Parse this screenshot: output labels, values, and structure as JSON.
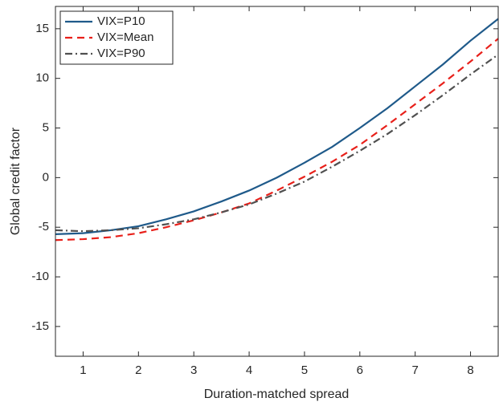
{
  "chart_data": {
    "type": "line",
    "x_label": "Duration-matched spread",
    "y_label": "Global credit factor",
    "x": [
      0.5,
      1,
      1.5,
      2,
      2.5,
      3,
      3.5,
      4,
      4.5,
      5,
      5.5,
      6,
      6.5,
      7,
      7.5,
      8,
      8.5
    ],
    "series": [
      {
        "name": "VIX=P10",
        "color": "#1f5a8a",
        "dash": "solid",
        "values": [
          -5.7,
          -5.6,
          -5.3,
          -4.9,
          -4.2,
          -3.4,
          -2.4,
          -1.3,
          0.0,
          1.5,
          3.1,
          5.0,
          7.0,
          9.2,
          11.4,
          13.8,
          16.0
        ]
      },
      {
        "name": "VIX=Mean",
        "color": "#e8201a",
        "dash": "dashed",
        "values": [
          -6.3,
          -6.2,
          -6.0,
          -5.6,
          -5.0,
          -4.3,
          -3.5,
          -2.6,
          -1.3,
          0.1,
          1.6,
          3.3,
          5.3,
          7.4,
          9.5,
          11.7,
          14.0
        ]
      },
      {
        "name": "VIX=P90",
        "color": "#505050",
        "dash": "dashdot",
        "values": [
          -5.3,
          -5.4,
          -5.3,
          -5.1,
          -4.7,
          -4.2,
          -3.5,
          -2.7,
          -1.6,
          -0.4,
          1.1,
          2.7,
          4.4,
          6.3,
          8.3,
          10.4,
          12.4
        ]
      }
    ],
    "xlim": [
      0.5,
      8.5
    ],
    "xticks": [
      1,
      2,
      3,
      4,
      5,
      6,
      7,
      8
    ],
    "ylim": [
      -18,
      17.25
    ],
    "yticks": [
      -15,
      -10,
      -5,
      0,
      5,
      10,
      15
    ],
    "legend": "upper left",
    "grid": false
  }
}
